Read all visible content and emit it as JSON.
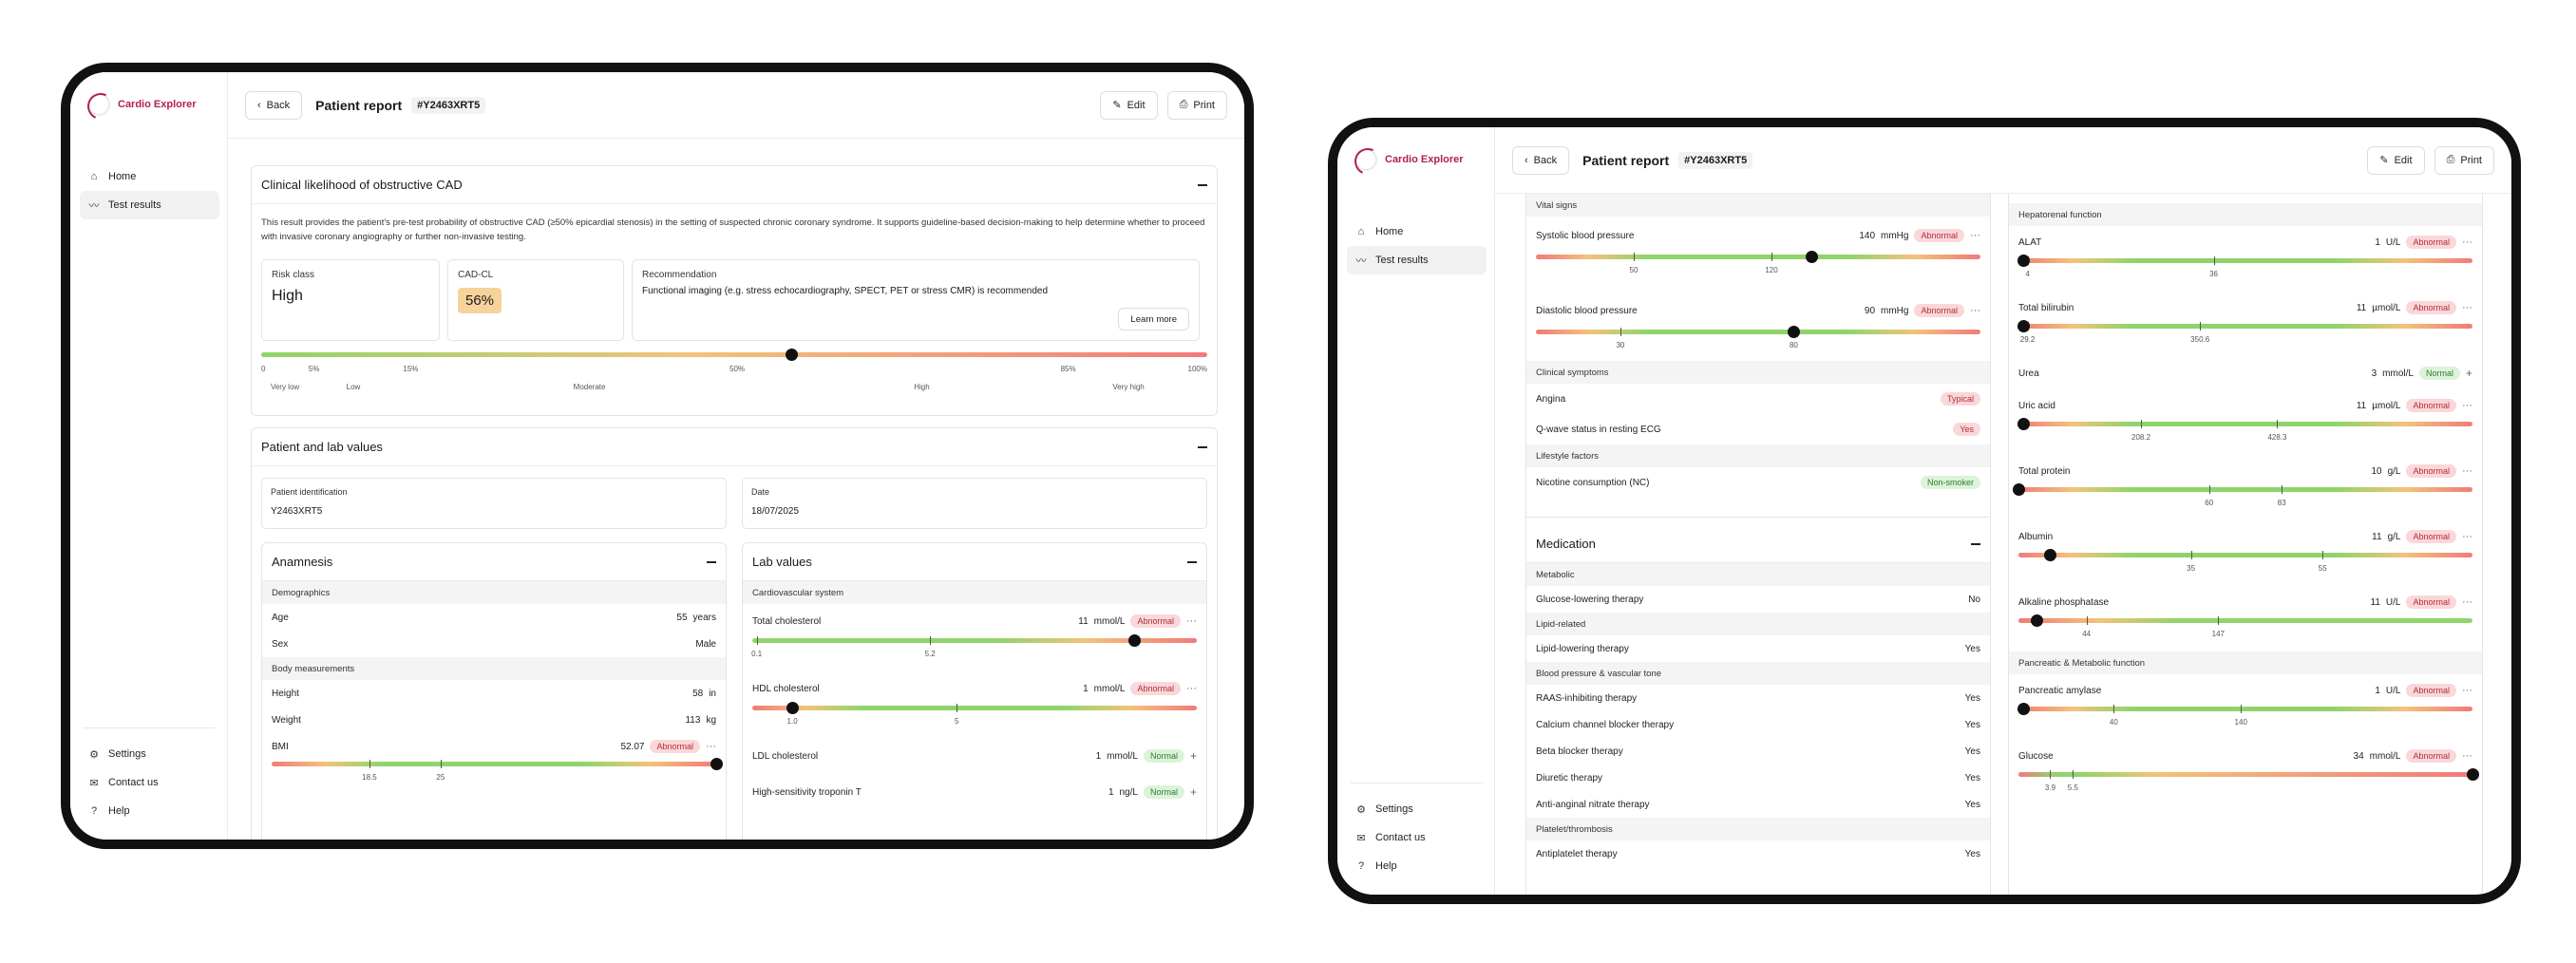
{
  "app": {
    "name": "Cardio Explorer"
  },
  "nav": {
    "home": "Home",
    "test_results": "Test results",
    "settings": "Settings",
    "contact": "Contact us",
    "help": "Help"
  },
  "header": {
    "back": "Back",
    "title": "Patient report",
    "patient_id": "#Y2463XRT5",
    "edit": "Edit",
    "print": "Print"
  },
  "likelihood": {
    "title": "Clinical likelihood of obstructive CAD",
    "description": "This result provides the patient's pre-test probability of obstructive CAD (≥50% epicardial stenosis) in the setting of suspected chronic coronary syndrome. It supports guideline-based decision-making to help determine whether to proceed with invasive coronary angiography or further non-invasive testing.",
    "risk_class_label": "Risk class",
    "risk_class": "High",
    "cadcl_label": "CAD-CL",
    "cadcl": "56%",
    "rec_label": "Recommendation",
    "rec": "Functional imaging (e.g. stress echocardiography, SPECT, PET or stress CMR) is recommended",
    "learn_more": "Learn more",
    "scale_ticks": [
      "0",
      "5%",
      "15%",
      "50%",
      "85%",
      "100%"
    ],
    "scale_cats": [
      "Very low",
      "Low",
      "Moderate",
      "High",
      "Very high"
    ],
    "value": 56
  },
  "patient": {
    "title": "Patient and lab values",
    "id_label": "Patient identification",
    "id": "Y2463XRT5",
    "date_label": "Date",
    "date": "18/07/2025"
  },
  "anamnesis": {
    "title": "Anamnesis",
    "demographics": "Demographics",
    "age_label": "Age",
    "age": "55",
    "age_unit": "years",
    "sex_label": "Sex",
    "sex": "Male",
    "body": "Body measurements",
    "height_label": "Height",
    "height": "58",
    "height_unit": "in",
    "weight_label": "Weight",
    "weight": "113",
    "weight_unit": "kg",
    "bmi_label": "BMI",
    "bmi": "52.07",
    "bmi_status": "Abnormal",
    "bmi_ticks": [
      "18.5",
      "25"
    ]
  },
  "lab": {
    "title": "Lab values",
    "cardio": "Cardiovascular system",
    "tc_label": "Total cholesterol",
    "tc": "11",
    "tc_unit": "mmol/L",
    "tc_status": "Abnormal",
    "tc_ticks": [
      "0.1",
      "5.2"
    ],
    "hdl_label": "HDL cholesterol",
    "hdl": "1",
    "hdl_unit": "mmol/L",
    "hdl_status": "Abnormal",
    "hdl_ticks": [
      "1.0",
      "5"
    ],
    "ldl_label": "LDL cholesterol",
    "ldl": "1",
    "ldl_unit": "mmol/L",
    "ldl_status": "Normal",
    "trop_label": "High-sensitivity troponin T",
    "trop": "1",
    "trop_unit": "ng/L",
    "trop_status": "Normal"
  },
  "vitals": {
    "title": "Vital signs",
    "sbp_label": "Systolic blood pressure",
    "sbp": "140",
    "sbp_unit": "mmHg",
    "sbp_status": "Abnormal",
    "sbp_ticks": [
      "50",
      "120"
    ],
    "dbp_label": "Diastolic blood pressure",
    "dbp": "90",
    "dbp_unit": "mmHg",
    "dbp_status": "Abnormal",
    "dbp_ticks": [
      "30",
      "80"
    ]
  },
  "symptoms": {
    "title": "Clinical symptoms",
    "angina_label": "Angina",
    "angina": "Typical",
    "qwave_label": "Q-wave status in resting ECG",
    "qwave": "Yes"
  },
  "lifestyle": {
    "title": "Lifestyle factors",
    "nic_label": "Nicotine consumption (NC)",
    "nic": "Non-smoker"
  },
  "medication": {
    "title": "Medication",
    "metabolic": "Metabolic",
    "glucose_label": "Glucose-lowering therapy",
    "glucose": "No",
    "lipid": "Lipid-related",
    "lipid_label": "Lipid-lowering therapy",
    "lipid_val": "Yes",
    "bp": "Blood pressure & vascular tone",
    "raas_label": "RAAS-inhibiting therapy",
    "raas": "Yes",
    "ccb_label": "Calcium channel blocker therapy",
    "ccb": "Yes",
    "beta_label": "Beta blocker therapy",
    "beta": "Yes",
    "diur_label": "Diuretic therapy",
    "diur": "Yes",
    "anti_label": "Anti-anginal nitrate therapy",
    "anti": "Yes",
    "plt": "Platelet/thrombosis",
    "antiplt_label": "Antiplatelet therapy",
    "antiplt": "Yes"
  },
  "hepatorenal": {
    "title": "Hepatorenal function",
    "alat_label": "ALAT",
    "alat": "1",
    "alat_unit": "U/L",
    "alat_status": "Abnormal",
    "alat_ticks": [
      "4",
      "36"
    ],
    "bili_label": "Total bilirubin",
    "bili": "11",
    "bili_unit": "µmol/L",
    "bili_status": "Abnormal",
    "bili_ticks": [
      "29.2",
      "350.6"
    ],
    "urea_label": "Urea",
    "urea": "3",
    "urea_unit": "mmol/L",
    "urea_status": "Normal",
    "uric_label": "Uric acid",
    "uric": "11",
    "uric_unit": "µmol/L",
    "uric_status": "Abnormal",
    "uric_ticks": [
      "208.2",
      "428.3"
    ],
    "prot_label": "Total protein",
    "prot": "10",
    "prot_unit": "g/L",
    "prot_status": "Abnormal",
    "prot_ticks": [
      "60",
      "83"
    ],
    "alb_label": "Albumin",
    "alb": "11",
    "alb_unit": "g/L",
    "alb_status": "Abnormal",
    "alb_ticks": [
      "35",
      "55"
    ],
    "alp_label": "Alkaline phosphatase",
    "alp": "11",
    "alp_unit": "U/L",
    "alp_status": "Abnormal",
    "alp_ticks": [
      "44",
      "147"
    ]
  },
  "pancreatic": {
    "title": "Pancreatic & Metabolic function",
    "amy_label": "Pancreatic amylase",
    "amy": "1",
    "amy_unit": "U/L",
    "amy_status": "Abnormal",
    "amy_ticks": [
      "40",
      "140"
    ],
    "glu_label": "Glucose",
    "glu": "34",
    "glu_unit": "mmol/L",
    "glu_status": "Abnormal",
    "glu_ticks": [
      "3.9",
      "5.5"
    ]
  },
  "icons": [
    "home-icon",
    "chart-icon",
    "settings-icon",
    "mail-icon",
    "help-icon",
    "chevron-left-icon",
    "edit-icon",
    "print-icon"
  ]
}
